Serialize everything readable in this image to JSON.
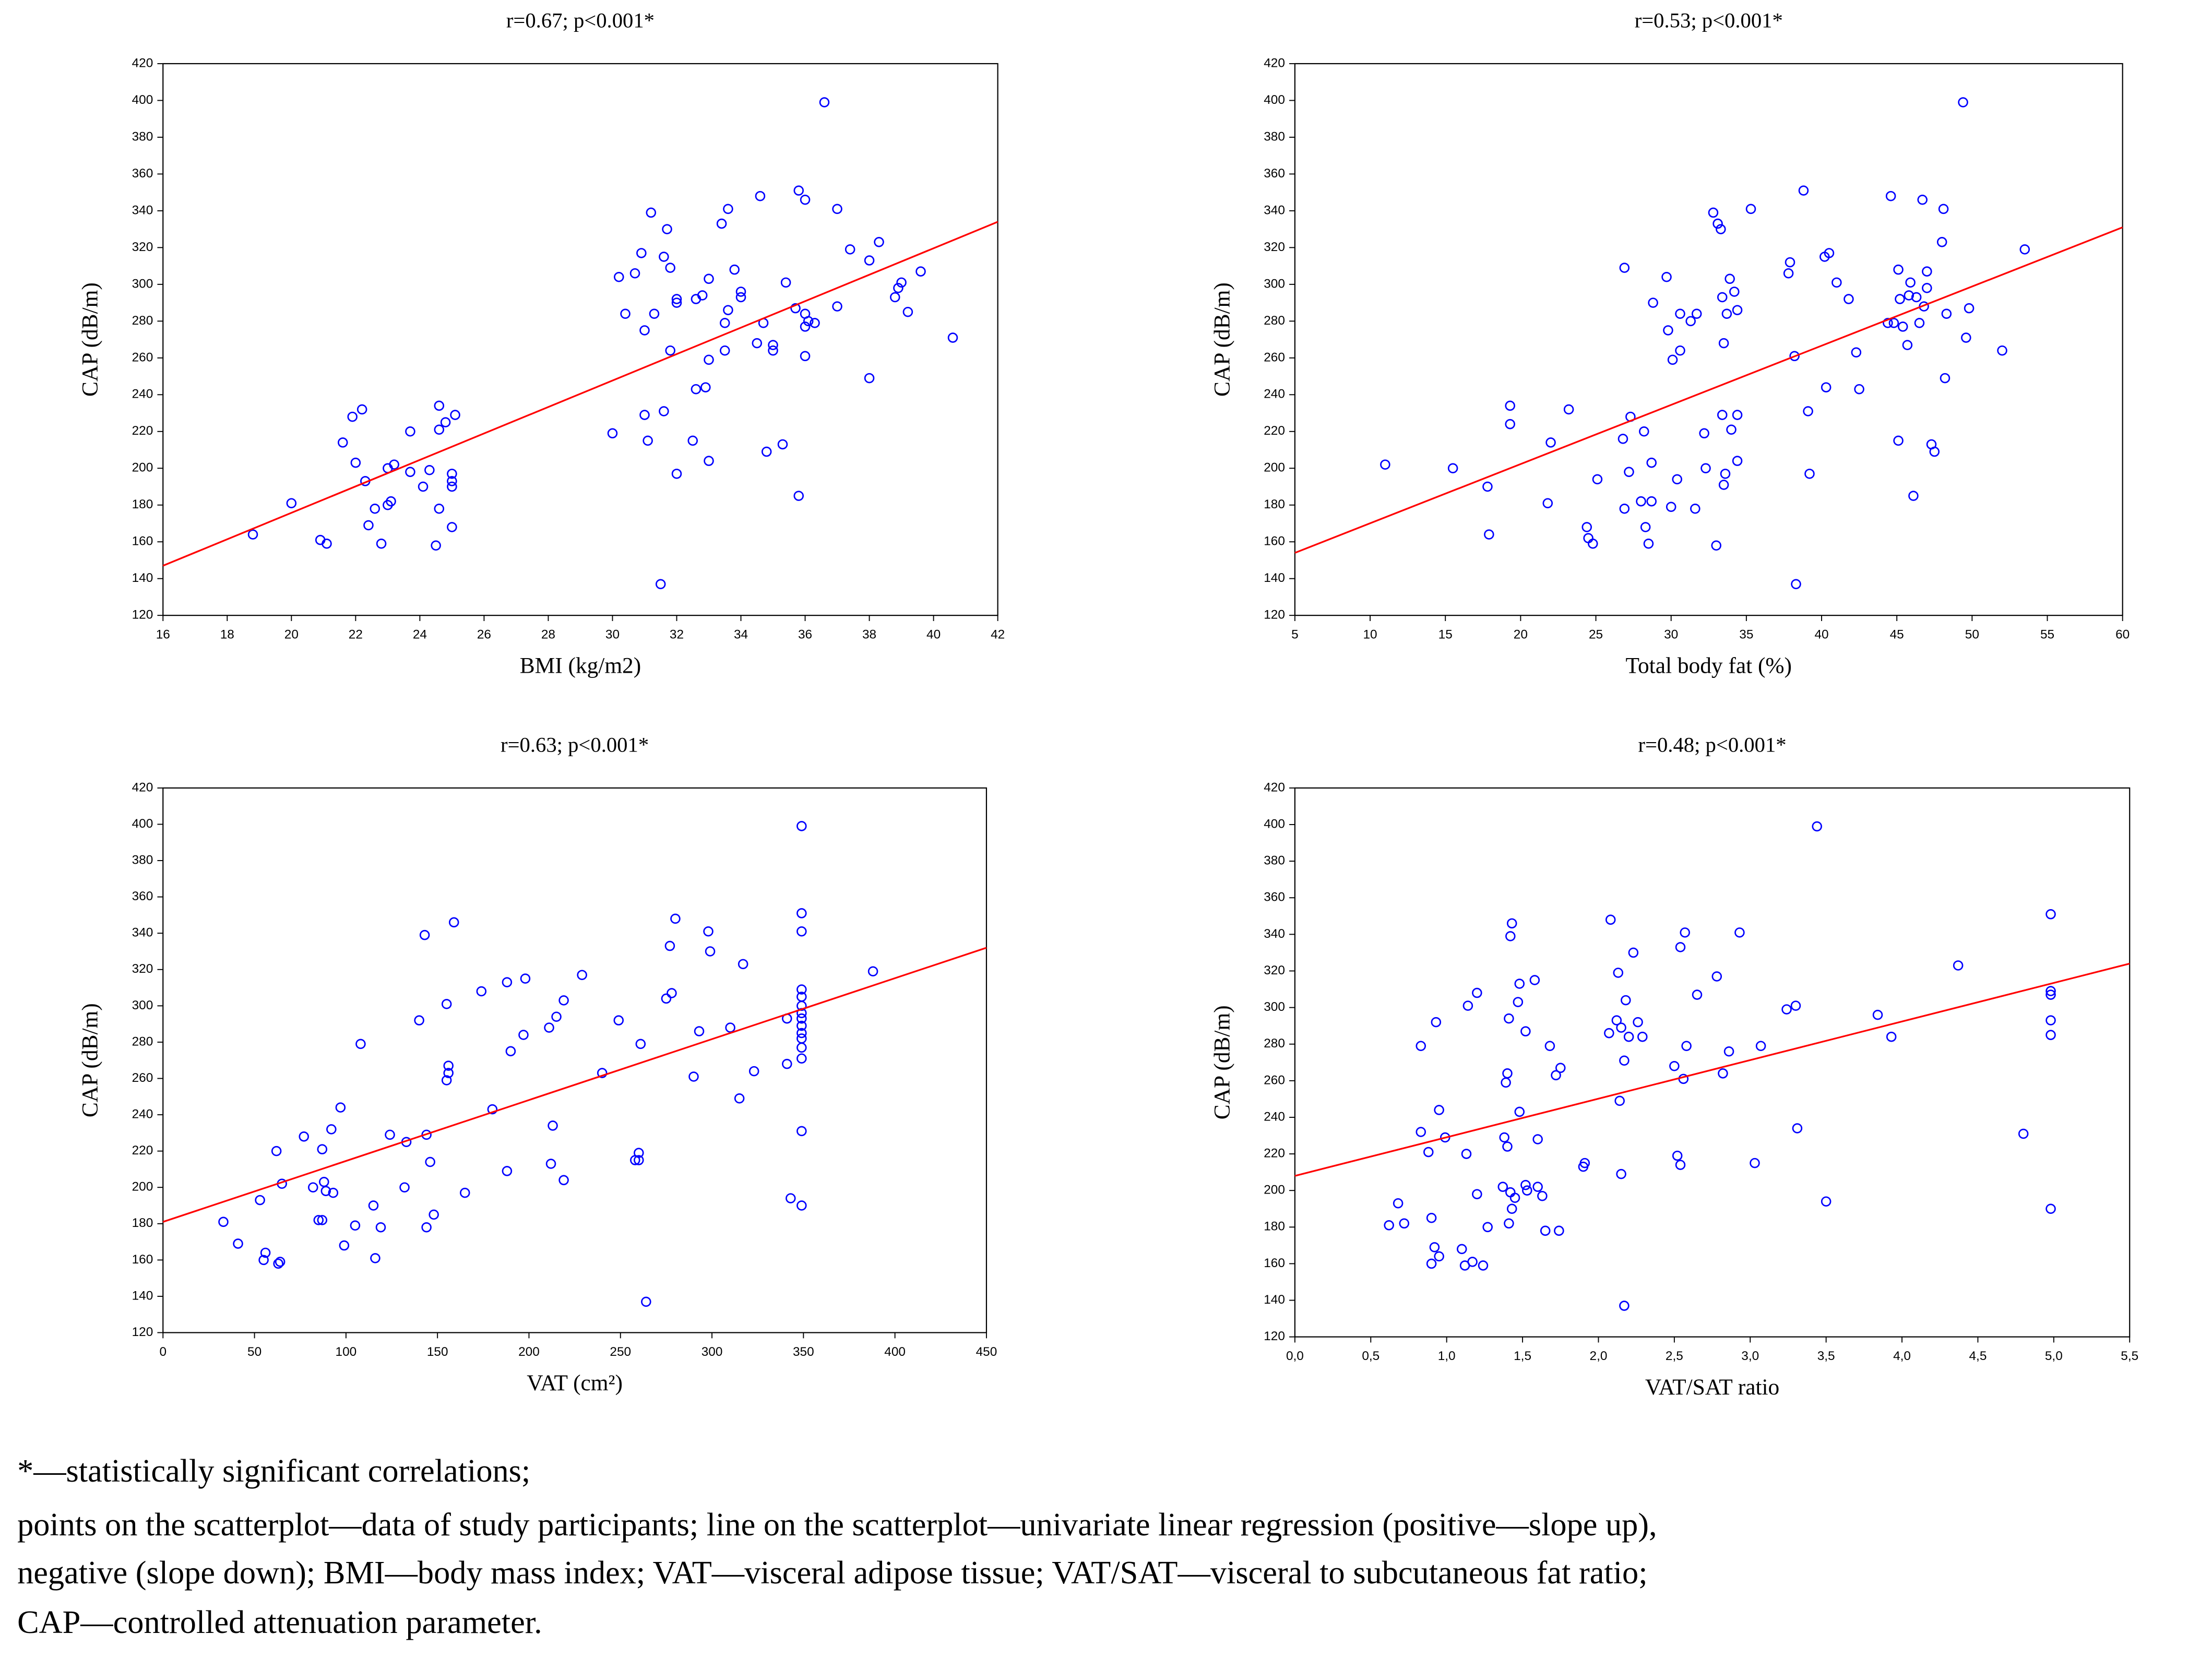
{
  "chart_data": [
    {
      "type": "scatter",
      "title": "r=0.67; p<0.001*",
      "x_label": "BMI (kg/m2)",
      "y_label": "CAP (dB/m)",
      "color": "#0000ff",
      "xlim": [
        16,
        42
      ],
      "xticks": [
        16,
        18,
        20,
        22,
        24,
        26,
        28,
        30,
        32,
        34,
        36,
        38,
        40,
        42
      ],
      "ylim": [
        120,
        420
      ],
      "yticks": [
        120,
        140,
        160,
        180,
        200,
        220,
        240,
        260,
        280,
        300,
        320,
        340,
        360,
        380,
        400,
        420
      ],
      "x": [
        18.8,
        20,
        20.9,
        21.1,
        21.6,
        21.9,
        22,
        22.2,
        22.3,
        22.4,
        22.6,
        22.8,
        23,
        23,
        23.1,
        23.2,
        23.7,
        23.7,
        24.1,
        24.3,
        24.5,
        24.6,
        24.6,
        24.6,
        24.8,
        25,
        25,
        25,
        25,
        25.1,
        30,
        30.2,
        30.4,
        30.7,
        30.9,
        31,
        31,
        31.1,
        31.2,
        31.3,
        31.5,
        31.6,
        31.6,
        31.7,
        31.8,
        31.8,
        32,
        32,
        32,
        32.5,
        32.6,
        32.6,
        32.8,
        32.9,
        33,
        33,
        33,
        33.4,
        33.5,
        33.5,
        33.6,
        33.6,
        33.8,
        34,
        34,
        34.5,
        34.6,
        34.7,
        34.8,
        35,
        35,
        35.3,
        35.4,
        35.7,
        35.8,
        35.8,
        36,
        36,
        36,
        36,
        36.1,
        36.3,
        36.6,
        37,
        37,
        37.4,
        38,
        38,
        38.3,
        38.8,
        38.9,
        39,
        39.2,
        39.6,
        40.6
      ],
      "values": [
        164,
        181,
        161,
        159,
        214,
        228,
        203,
        232,
        193,
        169,
        178,
        159,
        180,
        200,
        182,
        202,
        198,
        220,
        190,
        199,
        158,
        178,
        234,
        221,
        225,
        193,
        197,
        190,
        168,
        229,
        219,
        304,
        284,
        306,
        317,
        275,
        229,
        215,
        339,
        284,
        137,
        231,
        315,
        330,
        264,
        309,
        197,
        290,
        292,
        215,
        243,
        292,
        294,
        244,
        259,
        204,
        303,
        333,
        264,
        279,
        286,
        341,
        308,
        293,
        296,
        268,
        348,
        279,
        209,
        264,
        267,
        213,
        301,
        287,
        351,
        185,
        346,
        277,
        261,
        284,
        280,
        279,
        399,
        341,
        288,
        319,
        313,
        249,
        323,
        293,
        298,
        301,
        285,
        307,
        271
      ],
      "regression": {
        "x": [
          16,
          42
        ],
        "values": [
          147,
          334
        ],
        "color": "#ff0000"
      }
    },
    {
      "type": "scatter",
      "title": "r=0.53; p<0.001*",
      "x_label": "Total body fat (%)",
      "y_label": "CAP (dB/m)",
      "color": "#0000ff",
      "xlim": [
        5,
        60
      ],
      "xticks": [
        5,
        10,
        15,
        20,
        25,
        30,
        35,
        40,
        45,
        50,
        55,
        60
      ],
      "ylim": [
        120,
        420
      ],
      "yticks": [
        120,
        140,
        160,
        180,
        200,
        220,
        240,
        260,
        280,
        300,
        320,
        340,
        360,
        380,
        400,
        420
      ],
      "x": [
        11,
        15.5,
        17.8,
        17.9,
        19.3,
        19.3,
        22,
        21.8,
        23.2,
        24.4,
        24.5,
        24.8,
        25.1,
        26.8,
        26.9,
        26.9,
        27.2,
        27.3,
        28,
        28.2,
        28.3,
        28.5,
        28.7,
        28.7,
        28.8,
        29.7,
        29.8,
        30,
        30.1,
        30.4,
        30.6,
        30.6,
        31.3,
        31.6,
        31.7,
        32.2,
        32.3,
        32.8,
        33,
        33.1,
        33.3,
        33.4,
        33.4,
        33.5,
        33.5,
        33.6,
        33.7,
        33.9,
        34,
        34.2,
        34.4,
        34.4,
        34.4,
        35.3,
        37.8,
        37.9,
        38.2,
        38.3,
        38.8,
        39.1,
        39.2,
        40.2,
        40.3,
        40.5,
        41,
        41.8,
        42.3,
        42.5,
        44.4,
        44.6,
        44.8,
        45.1,
        45.1,
        45.2,
        45.4,
        45.7,
        45.8,
        45.9,
        46.1,
        46.3,
        46.5,
        46.7,
        46.8,
        47,
        47,
        47.3,
        47.5,
        48,
        48.1,
        48.2,
        48.3,
        49.4,
        49.6,
        49.8,
        52,
        53.5
      ],
      "values": [
        202,
        200,
        190,
        164,
        224,
        234,
        214,
        181,
        232,
        168,
        162,
        159,
        194,
        216,
        178,
        309,
        198,
        228,
        182,
        220,
        168,
        159,
        182,
        203,
        290,
        304,
        275,
        179,
        259,
        194,
        264,
        284,
        280,
        178,
        284,
        219,
        200,
        339,
        158,
        333,
        330,
        293,
        229,
        268,
        191,
        197,
        284,
        303,
        221,
        296,
        286,
        204,
        229,
        341,
        306,
        312,
        261,
        137,
        351,
        231,
        197,
        315,
        244,
        317,
        301,
        292,
        263,
        243,
        279,
        348,
        279,
        308,
        215,
        292,
        277,
        267,
        294,
        301,
        185,
        293,
        279,
        346,
        288,
        307,
        298,
        213,
        209,
        323,
        341,
        249,
        284,
        399,
        271,
        287,
        264,
        319
      ],
      "regression": {
        "x": [
          5,
          60
        ],
        "values": [
          154,
          331
        ],
        "color": "#ff0000"
      }
    },
    {
      "type": "scatter",
      "title": "r=0.63; p<0.001*",
      "x_label": "VAT (cm²)",
      "y_label": "CAP (dB/m)",
      "color": "#0000ff",
      "xlim": [
        0,
        450
      ],
      "xticks": [
        0,
        50,
        100,
        150,
        200,
        250,
        300,
        350,
        400,
        450
      ],
      "ylim": [
        120,
        420
      ],
      "yticks": [
        120,
        140,
        160,
        180,
        200,
        220,
        240,
        260,
        280,
        300,
        320,
        340,
        360,
        380,
        400,
        420
      ],
      "x": [
        33,
        41,
        53,
        55,
        56,
        62,
        63,
        64,
        65,
        77,
        82,
        85,
        87,
        87,
        88,
        89,
        92,
        93,
        97,
        99,
        105,
        108,
        115,
        116,
        119,
        124,
        132,
        133,
        140,
        143,
        144,
        144,
        146,
        148,
        155,
        155,
        156,
        156,
        159,
        165,
        174,
        180,
        188,
        188,
        190,
        198,
        197,
        211,
        212,
        213,
        215,
        219,
        219,
        229,
        240,
        249,
        258,
        260,
        260,
        261,
        264,
        275,
        277,
        278,
        280,
        290,
        293,
        298,
        299,
        310,
        315,
        317,
        323,
        341,
        341,
        343,
        349,
        349,
        349,
        349,
        349,
        349,
        349,
        349,
        349,
        349,
        349,
        349,
        349,
        349,
        349,
        388
      ],
      "values": [
        181,
        169,
        193,
        160,
        164,
        220,
        158,
        159,
        202,
        228,
        200,
        182,
        182,
        221,
        203,
        198,
        232,
        197,
        244,
        168,
        179,
        279,
        190,
        161,
        178,
        229,
        200,
        225,
        292,
        339,
        229,
        178,
        214,
        185,
        301,
        259,
        267,
        263,
        346,
        197,
        308,
        243,
        209,
        313,
        275,
        315,
        284,
        288,
        213,
        234,
        294,
        204,
        303,
        317,
        263,
        292,
        215,
        219,
        215,
        279,
        137,
        304,
        333,
        307,
        348,
        261,
        286,
        341,
        330,
        288,
        249,
        323,
        264,
        268,
        293,
        194,
        399,
        351,
        341,
        309,
        305,
        300,
        296,
        293,
        289,
        285,
        282,
        277,
        271,
        231,
        190,
        319
      ],
      "regression": {
        "x": [
          0,
          450
        ],
        "values": [
          181,
          332
        ],
        "color": "#ff0000"
      }
    },
    {
      "type": "scatter",
      "title": "r=0.48; p<0.001*",
      "x_label": "VAT/SAT ratio",
      "y_label": "CAP (dB/m)",
      "color": "#0000ff",
      "xlim": [
        0,
        5.5
      ],
      "xticks": [
        {
          "value": 0,
          "label": "0,0"
        },
        {
          "value": 0.5,
          "label": "0,5"
        },
        {
          "value": 1,
          "label": "1,0"
        },
        {
          "value": 1.5,
          "label": "1,5"
        },
        {
          "value": 2,
          "label": "2,0"
        },
        {
          "value": 2.5,
          "label": "2,5"
        },
        {
          "value": 3,
          "label": "3,0"
        },
        {
          "value": 3.5,
          "label": "3,5"
        },
        {
          "value": 4,
          "label": "4,0"
        },
        {
          "value": 4.5,
          "label": "4,5"
        },
        {
          "value": 5,
          "label": "5,0"
        },
        {
          "value": 5.5,
          "label": "5,5"
        }
      ],
      "ylim": [
        120,
        420
      ],
      "yticks": [
        120,
        140,
        160,
        180,
        200,
        220,
        240,
        260,
        280,
        300,
        320,
        340,
        360,
        380,
        400,
        420
      ],
      "x": [
        0.62,
        0.68,
        0.72,
        0.83,
        0.83,
        0.88,
        0.9,
        0.9,
        0.92,
        0.93,
        0.95,
        0.95,
        0.99,
        1.1,
        1.12,
        1.13,
        1.14,
        1.17,
        1.2,
        1.2,
        1.24,
        1.27,
        1.37,
        1.38,
        1.39,
        1.4,
        1.4,
        1.41,
        1.41,
        1.42,
        1.42,
        1.43,
        1.43,
        1.45,
        1.47,
        1.48,
        1.48,
        1.52,
        1.52,
        1.53,
        1.58,
        1.6,
        1.6,
        1.63,
        1.65,
        1.68,
        1.72,
        1.74,
        1.75,
        1.9,
        1.91,
        2.07,
        2.08,
        2.12,
        2.13,
        2.14,
        2.15,
        2.15,
        2.17,
        2.17,
        2.18,
        2.2,
        2.23,
        2.26,
        2.29,
        2.5,
        2.52,
        2.54,
        2.54,
        2.56,
        2.57,
        2.58,
        2.65,
        2.78,
        2.82,
        2.86,
        2.93,
        3.03,
        3.07,
        3.24,
        3.3,
        3.31,
        3.44,
        3.5,
        3.84,
        3.93,
        4.37,
        4.8,
        4.98,
        4.98,
        4.98,
        4.98,
        4.98,
        4.98
      ],
      "values": [
        181,
        193,
        182,
        279,
        232,
        221,
        185,
        160,
        169,
        292,
        164,
        244,
        229,
        168,
        159,
        220,
        301,
        161,
        198,
        308,
        159,
        180,
        202,
        229,
        259,
        224,
        264,
        182,
        294,
        339,
        199,
        346,
        190,
        196,
        303,
        243,
        313,
        203,
        287,
        200,
        315,
        228,
        202,
        197,
        178,
        279,
        263,
        178,
        267,
        213,
        215,
        286,
        348,
        293,
        319,
        249,
        209,
        289,
        137,
        271,
        304,
        284,
        330,
        292,
        284,
        268,
        219,
        214,
        333,
        261,
        341,
        279,
        307,
        317,
        264,
        276,
        341,
        215,
        279,
        299,
        301,
        234,
        399,
        194,
        296,
        284,
        323,
        231,
        351,
        309,
        307,
        293,
        285,
        190
      ],
      "regression": {
        "x": [
          0,
          5.5
        ],
        "values": [
          208,
          324
        ],
        "color": "#ff0000"
      }
    }
  ],
  "footnote": [
    "*—statistically significant correlations;",
    "points on the scatterplot—data of study participants; line on the scatterplot—univariate linear regression (positive—slope up),",
    "negative (slope down); BMI—body mass index; VAT—visceral adipose tissue; VAT/SAT—visceral to subcutaneous fat ratio;",
    "CAP—controlled attenuation parameter."
  ]
}
